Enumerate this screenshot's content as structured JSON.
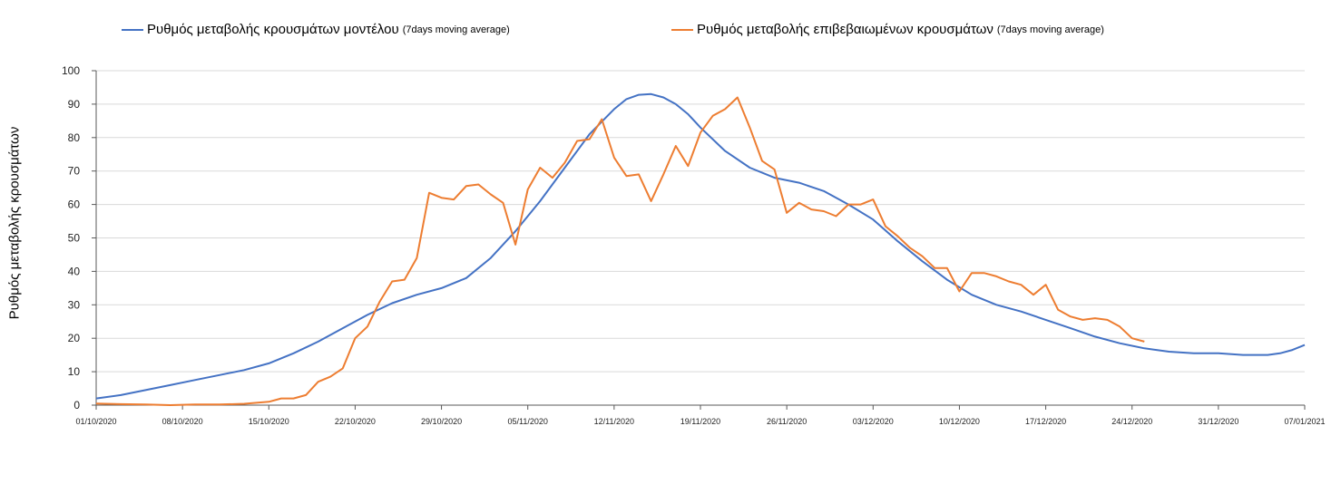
{
  "chart_data": {
    "type": "line",
    "title": "",
    "xlabel": "",
    "ylabel": "Ρυθμός μεταβολής κρουσμάτων",
    "ylim": [
      0,
      100
    ],
    "yticks": [
      0,
      10,
      20,
      30,
      40,
      50,
      60,
      70,
      80,
      90,
      100
    ],
    "xlim": [
      "01/10/2020",
      "07/01/2021"
    ],
    "xticks": [
      "01/10/2020",
      "08/10/2020",
      "15/10/2020",
      "22/10/2020",
      "29/10/2020",
      "05/11/2020",
      "12/11/2020",
      "19/11/2020",
      "26/11/2020",
      "03/12/2020",
      "10/12/2020",
      "17/12/2020",
      "24/12/2020",
      "31/12/2020",
      "07/01/2021"
    ],
    "grid": true,
    "legend_position": "top",
    "series": [
      {
        "name": "Ρυθμός μεταβολής κρουσμάτων μοντέλου",
        "name_suffix": "(7days moving average)",
        "color": "#4472c4",
        "x": [
          "01/10/2020",
          "03/10/2020",
          "05/10/2020",
          "07/10/2020",
          "09/10/2020",
          "11/10/2020",
          "13/10/2020",
          "15/10/2020",
          "17/10/2020",
          "19/10/2020",
          "21/10/2020",
          "23/10/2020",
          "25/10/2020",
          "27/10/2020",
          "29/10/2020",
          "31/10/2020",
          "02/11/2020",
          "04/11/2020",
          "06/11/2020",
          "08/11/2020",
          "10/11/2020",
          "12/11/2020",
          "13/11/2020",
          "14/11/2020",
          "15/11/2020",
          "16/11/2020",
          "17/11/2020",
          "18/11/2020",
          "19/11/2020",
          "21/11/2020",
          "23/11/2020",
          "25/11/2020",
          "27/11/2020",
          "29/11/2020",
          "01/12/2020",
          "03/12/2020",
          "05/12/2020",
          "07/12/2020",
          "09/12/2020",
          "11/12/2020",
          "13/12/2020",
          "15/12/2020",
          "17/12/2020",
          "19/12/2020",
          "21/12/2020",
          "23/12/2020",
          "25/12/2020",
          "27/12/2020",
          "29/12/2020",
          "31/12/2020",
          "02/01/2021",
          "04/01/2021",
          "05/01/2021",
          "06/01/2021",
          "07/01/2021"
        ],
        "values": [
          2,
          3,
          4.5,
          6,
          7.5,
          9,
          10.5,
          12.5,
          15.5,
          19,
          23,
          27,
          30.5,
          33,
          35,
          38,
          44,
          52,
          61,
          71,
          81,
          88.5,
          91.5,
          92.8,
          93,
          92,
          90,
          87,
          83,
          76,
          71,
          68,
          66.5,
          64,
          60,
          55.5,
          49,
          43,
          37.5,
          33,
          30,
          28,
          25.5,
          23,
          20.5,
          18.5,
          17,
          16,
          15.5,
          15.5,
          15,
          15,
          15.5,
          16.5,
          18
        ]
      },
      {
        "name": "Ρυθμός μεταβολής επιβεβαιωμένων κρουσμάτων",
        "name_suffix": "(7days moving average)",
        "color": "#ed7d31",
        "x": [
          "01/10/2020",
          "03/10/2020",
          "05/10/2020",
          "07/10/2020",
          "09/10/2020",
          "11/10/2020",
          "13/10/2020",
          "15/10/2020",
          "16/10/2020",
          "17/10/2020",
          "18/10/2020",
          "19/10/2020",
          "20/10/2020",
          "21/10/2020",
          "22/10/2020",
          "23/10/2020",
          "24/10/2020",
          "25/10/2020",
          "26/10/2020",
          "27/10/2020",
          "28/10/2020",
          "29/10/2020",
          "30/10/2020",
          "31/10/2020",
          "01/11/2020",
          "02/11/2020",
          "03/11/2020",
          "04/11/2020",
          "05/11/2020",
          "06/11/2020",
          "07/11/2020",
          "08/11/2020",
          "09/11/2020",
          "10/11/2020",
          "11/11/2020",
          "12/11/2020",
          "13/11/2020",
          "14/11/2020",
          "15/11/2020",
          "16/11/2020",
          "17/11/2020",
          "18/11/2020",
          "19/11/2020",
          "20/11/2020",
          "21/11/2020",
          "22/11/2020",
          "23/11/2020",
          "24/11/2020",
          "25/11/2020",
          "26/11/2020",
          "27/11/2020",
          "28/11/2020",
          "29/11/2020",
          "30/11/2020",
          "01/12/2020",
          "02/12/2020",
          "03/12/2020",
          "04/12/2020",
          "05/12/2020",
          "06/12/2020",
          "07/12/2020",
          "08/12/2020",
          "09/12/2020",
          "10/12/2020",
          "11/12/2020",
          "12/12/2020",
          "13/12/2020",
          "14/12/2020",
          "15/12/2020",
          "16/12/2020",
          "17/12/2020",
          "18/12/2020",
          "19/12/2020",
          "20/12/2020",
          "21/12/2020",
          "22/12/2020",
          "23/12/2020",
          "24/12/2020",
          "25/12/2020"
        ],
        "values": [
          0.5,
          0.3,
          0.2,
          0,
          0.2,
          0.2,
          0.4,
          1,
          2,
          2,
          3,
          7,
          8.5,
          11,
          20,
          23.5,
          31,
          37,
          37.5,
          44,
          63.5,
          62,
          61.5,
          65.5,
          66,
          63,
          60.5,
          48,
          64.5,
          71,
          68,
          72.5,
          79,
          79.5,
          85.5,
          74,
          68.5,
          69,
          61,
          69,
          77.5,
          71.5,
          81.5,
          86.5,
          88.5,
          92,
          83,
          73,
          70.5,
          57.5,
          60.5,
          58.5,
          58,
          56.5,
          60,
          60,
          61.5,
          53.5,
          50.5,
          47,
          44.5,
          41,
          41,
          34,
          39.5,
          39.5,
          38.5,
          37,
          36,
          33,
          36,
          28.5,
          26.5,
          25.5,
          26,
          25.5,
          23.5,
          20,
          19
        ]
      }
    ]
  }
}
